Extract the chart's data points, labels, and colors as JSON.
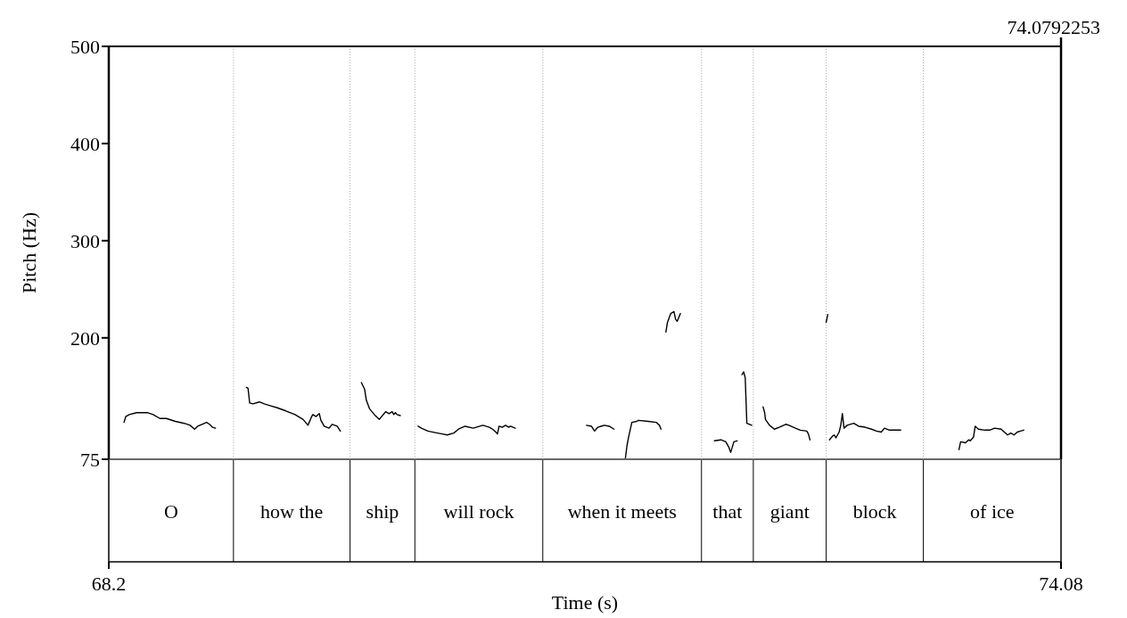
{
  "chart_data": {
    "type": "line",
    "xlabel": "Time (s)",
    "ylabel": "Pitch (Hz)",
    "xlim": [
      68.2,
      74.08
    ],
    "xticks": [
      68.2,
      74.08
    ],
    "ylim": [
      75,
      500
    ],
    "yticks": [
      75,
      200,
      300,
      400,
      500
    ],
    "marker": "none",
    "line_style": "solid",
    "annotations": [
      "74.0792253",
      "O",
      "how the",
      "ship",
      "will rock",
      "when it meets",
      "that",
      "giant",
      "block",
      "of ice"
    ],
    "ref_lines": [
      {
        "axis": "x",
        "value": 68.97,
        "line_style": "dotted"
      },
      {
        "axis": "x",
        "value": 69.69,
        "line_style": "dotted"
      },
      {
        "axis": "x",
        "value": 70.09,
        "line_style": "dotted"
      },
      {
        "axis": "x",
        "value": 70.88,
        "line_style": "dotted"
      },
      {
        "axis": "x",
        "value": 71.86,
        "line_style": "dotted"
      },
      {
        "axis": "x",
        "value": 72.18,
        "line_style": "dotted"
      },
      {
        "axis": "x",
        "value": 72.63,
        "line_style": "dotted"
      },
      {
        "axis": "x",
        "value": 73.23,
        "line_style": "dotted"
      }
    ],
    "series": [
      {
        "color": "#000000",
        "x": [
          68.294,
          68.305,
          68.327,
          68.372,
          68.437,
          68.474,
          68.515,
          68.556,
          68.611,
          68.666,
          68.702,
          68.73,
          68.749,
          68.776,
          68.804,
          68.822,
          68.84,
          68.859,
          68.95,
          69.05,
          69.06,
          69.07,
          69.09,
          69.13,
          69.16,
          69.2,
          69.24,
          69.29,
          69.35,
          69.4,
          69.43,
          69.45,
          69.46,
          69.48,
          69.5,
          69.51,
          69.53,
          69.56,
          69.58,
          69.61,
          69.63,
          69.7,
          69.76,
          69.78,
          69.79,
          69.81,
          69.84,
          69.87,
          69.9,
          69.91,
          69.93,
          69.95,
          69.96,
          69.97,
          69.98,
          70.0,
          70.05,
          70.11,
          70.13,
          70.17,
          70.23,
          70.26,
          70.29,
          70.33,
          70.36,
          70.4,
          70.45,
          70.51,
          70.55,
          70.57,
          70.59,
          70.6,
          70.61,
          70.63,
          70.65,
          70.67,
          70.68,
          70.71,
          70.9,
          71.15,
          71.18,
          71.2,
          71.22,
          71.24,
          71.26,
          71.29,
          71.32,
          71.35,
          71.39,
          71.4,
          71.41,
          71.43,
          71.46,
          71.47,
          71.53,
          71.58,
          71.6,
          71.61,
          71.625,
          71.64,
          71.65,
          71.67,
          71.69,
          71.7,
          71.71,
          71.73,
          71.8,
          71.94,
          71.98,
          72.01,
          72.03,
          72.04,
          72.06,
          72.08,
          72.095,
          72.11,
          72.12,
          72.13,
          72.14,
          72.17,
          72.2,
          72.24,
          72.25,
          72.255,
          72.28,
          72.31,
          72.34,
          72.38,
          72.4,
          72.44,
          72.47,
          72.51,
          72.52,
          72.53,
          72.6,
          72.63,
          72.64,
          72.645,
          72.65,
          72.67,
          72.68,
          72.69,
          72.71,
          72.72,
          72.73,
          72.74,
          72.76,
          72.8,
          72.83,
          72.87,
          72.91,
          72.94,
          72.97,
          72.99,
          73.02,
          73.09,
          73.3,
          73.45,
          73.46,
          73.49,
          73.51,
          73.52,
          73.54,
          73.55,
          73.57,
          73.61,
          73.64,
          73.67,
          73.71,
          73.75,
          73.77,
          73.79,
          73.81,
          73.83,
          73.85
        ],
        "values": [
          113,
          119,
          121,
          123,
          123,
          121,
          117,
          117,
          114,
          112,
          110,
          106,
          109,
          111,
          113,
          111,
          108,
          107,
          null,
          149,
          148,
          133,
          132,
          134,
          132,
          130,
          128,
          125,
          121,
          116,
          110,
          118,
          121,
          119,
          122,
          115,
          109,
          107,
          111,
          109,
          104,
          null,
          154,
          147,
          136,
          127,
          121,
          116,
          122,
          124,
          122,
          124,
          121,
          123,
          121,
          120,
          null,
          109,
          107,
          104,
          102,
          101,
          100,
          102,
          106,
          109,
          107,
          110,
          108,
          106,
          103,
          101,
          109,
          108,
          110,
          108,
          109,
          107,
          null,
          110,
          109,
          104,
          108,
          109,
          110,
          109,
          106,
          null,
          76,
          89,
          98,
          113,
          114,
          115,
          114,
          113,
          110,
          106,
          null,
          206,
          216,
          225,
          227,
          219,
          217,
          225,
          null,
          94,
          95,
          93,
          87,
          82,
          93,
          94,
          null,
          162,
          165,
          159,
          112,
          110,
          null,
          129,
          123,
          116,
          110,
          106,
          108,
          111,
          110,
          107,
          105,
          104,
          101,
          95,
          null,
          216,
          224,
          null,
          95,
          99,
          100,
          97,
          103,
          110,
          122,
          107,
          110,
          112,
          109,
          108,
          106,
          104,
          103,
          107,
          105,
          105,
          null,
          85,
          93,
          92,
          95,
          94,
          98,
          109,
          106,
          105,
          105,
          107,
          106,
          100,
          102,
          100,
          103,
          104,
          105
        ]
      }
    ]
  }
}
